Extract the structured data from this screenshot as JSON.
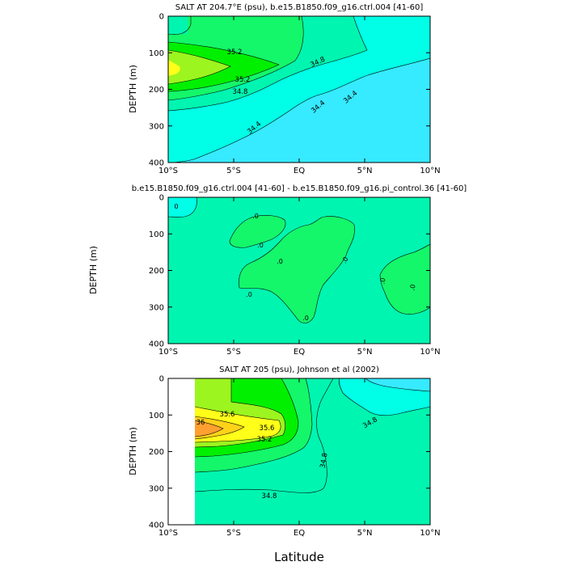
{
  "figure": {
    "xlabel": "Latitude"
  },
  "chart_data": [
    {
      "type": "heatmap",
      "title": "SALT AT 204.7°E (psu), b.e15.B1850.f09_g16.ctrl.004 [41-60]",
      "ylabel": "DEPTH (m)",
      "x_ticks": [
        "10°S",
        "5°S",
        "EQ",
        "5°N",
        "10°N"
      ],
      "y_ticks": [
        "0",
        "100",
        "200",
        "300",
        "400"
      ],
      "xlim": [
        -10,
        10
      ],
      "ylim": [
        400,
        0
      ],
      "contour_labels": [
        "35.2",
        "35.2",
        "34.8",
        "34.8",
        "34.4",
        "34.4",
        "34.4"
      ],
      "colors": {
        "high": "#ffff1a",
        "35.4": "#9cf51f",
        "35.2": "#00f000",
        "35.0": "#14f76a",
        "34.8": "#00f5b0",
        "34.6": "#00ffe6",
        "34.4": "#36eaff"
      }
    },
    {
      "type": "heatmap",
      "title": "b.e15.B1850.f09_g16.ctrl.004 [41-60] - b.e15.B1850.f09_g16.pi_control.36 [41-60]",
      "ylabel": "DEPTH (m)",
      "x_ticks": [
        "10°S",
        "5°S",
        "EQ",
        "5°N",
        "10°N"
      ],
      "y_ticks": [
        "0",
        "100",
        "200",
        "300",
        "400"
      ],
      "xlim": [
        -10,
        10
      ],
      "ylim": [
        400,
        0
      ],
      "contour_labels": [
        "0",
        ".0",
        ".0",
        ".0",
        ".0",
        ".0",
        ".0",
        ".0"
      ],
      "colors": {
        "background": "#00f5b0",
        "positive": "#14f76a",
        "negative": "#00ffe6"
      }
    },
    {
      "type": "heatmap",
      "title": "SALT AT 205 (psu), Johnson et al (2002)",
      "ylabel": "DEPTH (m)",
      "x_ticks": [
        "10°S",
        "5°S",
        "EQ",
        "5°N",
        "10°N"
      ],
      "y_ticks": [
        "0",
        "100",
        "200",
        "300",
        "400"
      ],
      "xlim": [
        -10,
        10
      ],
      "ylim": [
        400,
        0
      ],
      "contour_labels": [
        "35.6",
        "36",
        "35.6",
        "35.2",
        "34.8",
        "34.8",
        "34.8"
      ],
      "colors": {
        "36.0": "#ffa030",
        "35.8": "#ffd21a",
        "35.6": "#ffff1a",
        "35.4": "#9cf51f",
        "35.2": "#00f000",
        "35.0": "#14f76a",
        "34.8": "#00f5b0",
        "34.6": "#00ffe6",
        "34.4": "#36eaff"
      }
    }
  ]
}
